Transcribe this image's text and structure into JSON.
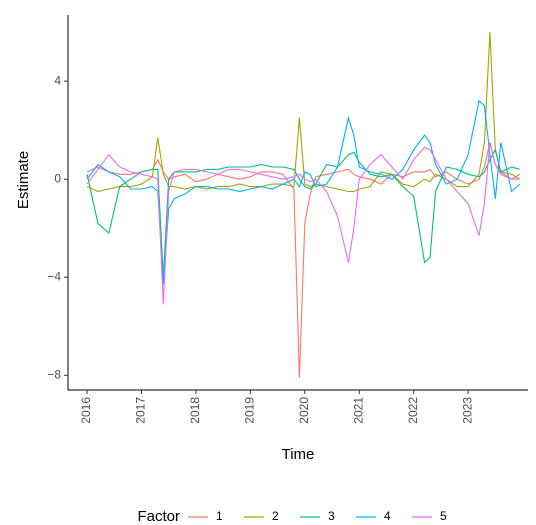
{
  "chart_data": {
    "type": "line",
    "x_label": "Time",
    "y_label": "Estimate",
    "legend_title": "Factor",
    "legend_position": "bottom",
    "grid": false,
    "x": [
      2016.0,
      2016.2,
      2016.4,
      2016.6,
      2016.8,
      2017.0,
      2017.2,
      2017.3,
      2017.4,
      2017.5,
      2017.6,
      2017.8,
      2018.0,
      2018.2,
      2018.4,
      2018.6,
      2018.8,
      2019.0,
      2019.2,
      2019.4,
      2019.6,
      2019.8,
      2019.9,
      2020.0,
      2020.1,
      2020.2,
      2020.4,
      2020.6,
      2020.8,
      2020.9,
      2021.0,
      2021.2,
      2021.4,
      2021.6,
      2021.8,
      2022.0,
      2022.2,
      2022.3,
      2022.4,
      2022.6,
      2022.8,
      2023.0,
      2023.2,
      2023.3,
      2023.4,
      2023.5,
      2023.6,
      2023.8,
      2023.95
    ],
    "xlim": [
      2015.65,
      2024.1
    ],
    "xticks": [
      2016,
      2017,
      2018,
      2019,
      2020,
      2021,
      2022,
      2023
    ],
    "ylim": [
      -8.6,
      6.7
    ],
    "yticks": [
      {
        "value": -8,
        "label": "−8"
      },
      {
        "value": -4,
        "label": "−4"
      },
      0,
      4
    ],
    "series": [
      {
        "name": "1",
        "color": "#F8766D",
        "values": [
          0.3,
          0.5,
          0.3,
          0.2,
          0.2,
          0.3,
          0.4,
          0.8,
          0.3,
          0.0,
          0.1,
          0.2,
          -0.1,
          0.0,
          0.2,
          0.1,
          0.0,
          0.1,
          0.3,
          0.3,
          0.2,
          -0.4,
          -8.1,
          -1.8,
          -0.6,
          0.1,
          0.2,
          0.3,
          0.4,
          0.2,
          0.1,
          0.0,
          -0.2,
          0.2,
          0.1,
          0.3,
          0.3,
          0.4,
          0.1,
          0.3,
          0.0,
          -0.2,
          0.0,
          0.5,
          1.5,
          0.6,
          0.3,
          0.0,
          0.2
        ]
      },
      {
        "name": "2",
        "color": "#A3A500",
        "values": [
          -0.3,
          -0.5,
          -0.4,
          -0.3,
          -0.3,
          -0.2,
          0.1,
          1.7,
          0.2,
          -0.3,
          -0.3,
          -0.4,
          -0.3,
          -0.4,
          -0.3,
          -0.3,
          -0.2,
          -0.3,
          -0.3,
          -0.2,
          -0.2,
          -0.3,
          2.5,
          -0.2,
          -0.3,
          -0.2,
          -0.3,
          -0.4,
          -0.5,
          -0.5,
          -0.4,
          -0.3,
          0.3,
          0.2,
          -0.2,
          -0.3,
          0.0,
          -0.1,
          0.2,
          0.0,
          -0.3,
          -0.3,
          0.2,
          1.5,
          6.0,
          1.2,
          0.3,
          0.2,
          0.0
        ]
      },
      {
        "name": "3",
        "color": "#00BF7D",
        "values": [
          0.2,
          -1.8,
          -2.2,
          -0.3,
          0.0,
          0.3,
          0.4,
          0.4,
          -4.0,
          0.0,
          0.3,
          0.3,
          0.3,
          0.4,
          0.4,
          0.5,
          0.5,
          0.5,
          0.6,
          0.5,
          0.5,
          0.4,
          0.0,
          -0.3,
          -0.4,
          -0.2,
          0.6,
          0.5,
          1.0,
          1.1,
          0.7,
          0.2,
          0.1,
          0.2,
          -0.3,
          -0.7,
          -3.4,
          -3.2,
          -0.5,
          0.5,
          0.4,
          0.2,
          0.1,
          0.3,
          0.8,
          1.2,
          0.3,
          0.5,
          0.4
        ]
      },
      {
        "name": "4",
        "color": "#00B0F6",
        "values": [
          0.0,
          0.6,
          0.3,
          0.1,
          -0.4,
          -0.4,
          -0.3,
          -0.5,
          -4.3,
          -1.2,
          -0.8,
          -0.6,
          -0.3,
          -0.3,
          -0.4,
          -0.4,
          -0.5,
          -0.4,
          -0.3,
          -0.4,
          -0.2,
          0.0,
          -0.3,
          0.3,
          0.2,
          -0.3,
          -0.2,
          0.5,
          2.5,
          1.8,
          0.5,
          0.3,
          0.2,
          0.0,
          0.4,
          1.2,
          1.8,
          1.5,
          0.6,
          -0.2,
          0.0,
          1.0,
          3.2,
          3.0,
          1.0,
          -0.8,
          1.5,
          -0.5,
          -0.2
        ]
      },
      {
        "name": "5",
        "color": "#E76BF3",
        "values": [
          -0.2,
          0.4,
          1.0,
          0.5,
          0.3,
          0.2,
          0.1,
          0.0,
          -5.1,
          -0.5,
          0.3,
          0.4,
          0.4,
          0.3,
          0.2,
          0.4,
          0.4,
          0.3,
          0.2,
          0.1,
          0.0,
          0.1,
          0.2,
          0.0,
          -0.1,
          0.0,
          -0.5,
          -1.5,
          -3.4,
          -2.0,
          0.0,
          0.6,
          1.0,
          0.5,
          0.0,
          0.8,
          1.3,
          1.2,
          0.8,
          0.0,
          -0.5,
          -1.0,
          -2.3,
          -1.0,
          1.5,
          0.6,
          0.2,
          0.0,
          0.0
        ]
      }
    ]
  }
}
